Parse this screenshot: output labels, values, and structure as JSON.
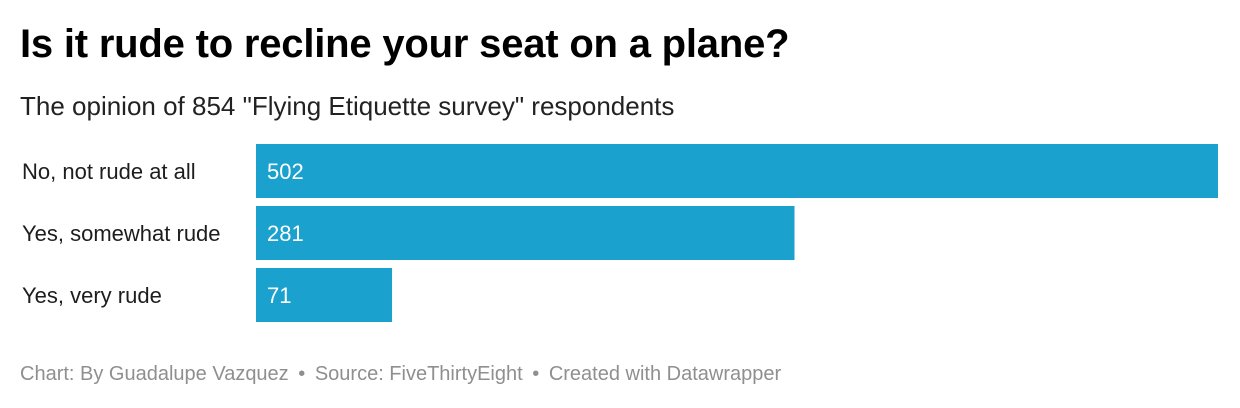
{
  "header": {
    "title": "Is it rude to recline your seat on a plane?",
    "subtitle": "The opinion of 854 \"Flying Etiquette survey\" respondents"
  },
  "chart_data": {
    "type": "bar",
    "orientation": "horizontal",
    "categories": [
      "No, not rude at all",
      "Yes, somewhat rude",
      "Yes, very rude"
    ],
    "values": [
      502,
      281,
      71
    ],
    "xlim": [
      0,
      502
    ],
    "grid": false,
    "bar_color": "#1aa1ce",
    "label_color": "#ffffff"
  },
  "footer": {
    "credit": "Chart: By Guadalupe Vazquez",
    "source": "Source: FiveThirtyEight",
    "tool": "Created with Datawrapper",
    "separator": "•"
  }
}
